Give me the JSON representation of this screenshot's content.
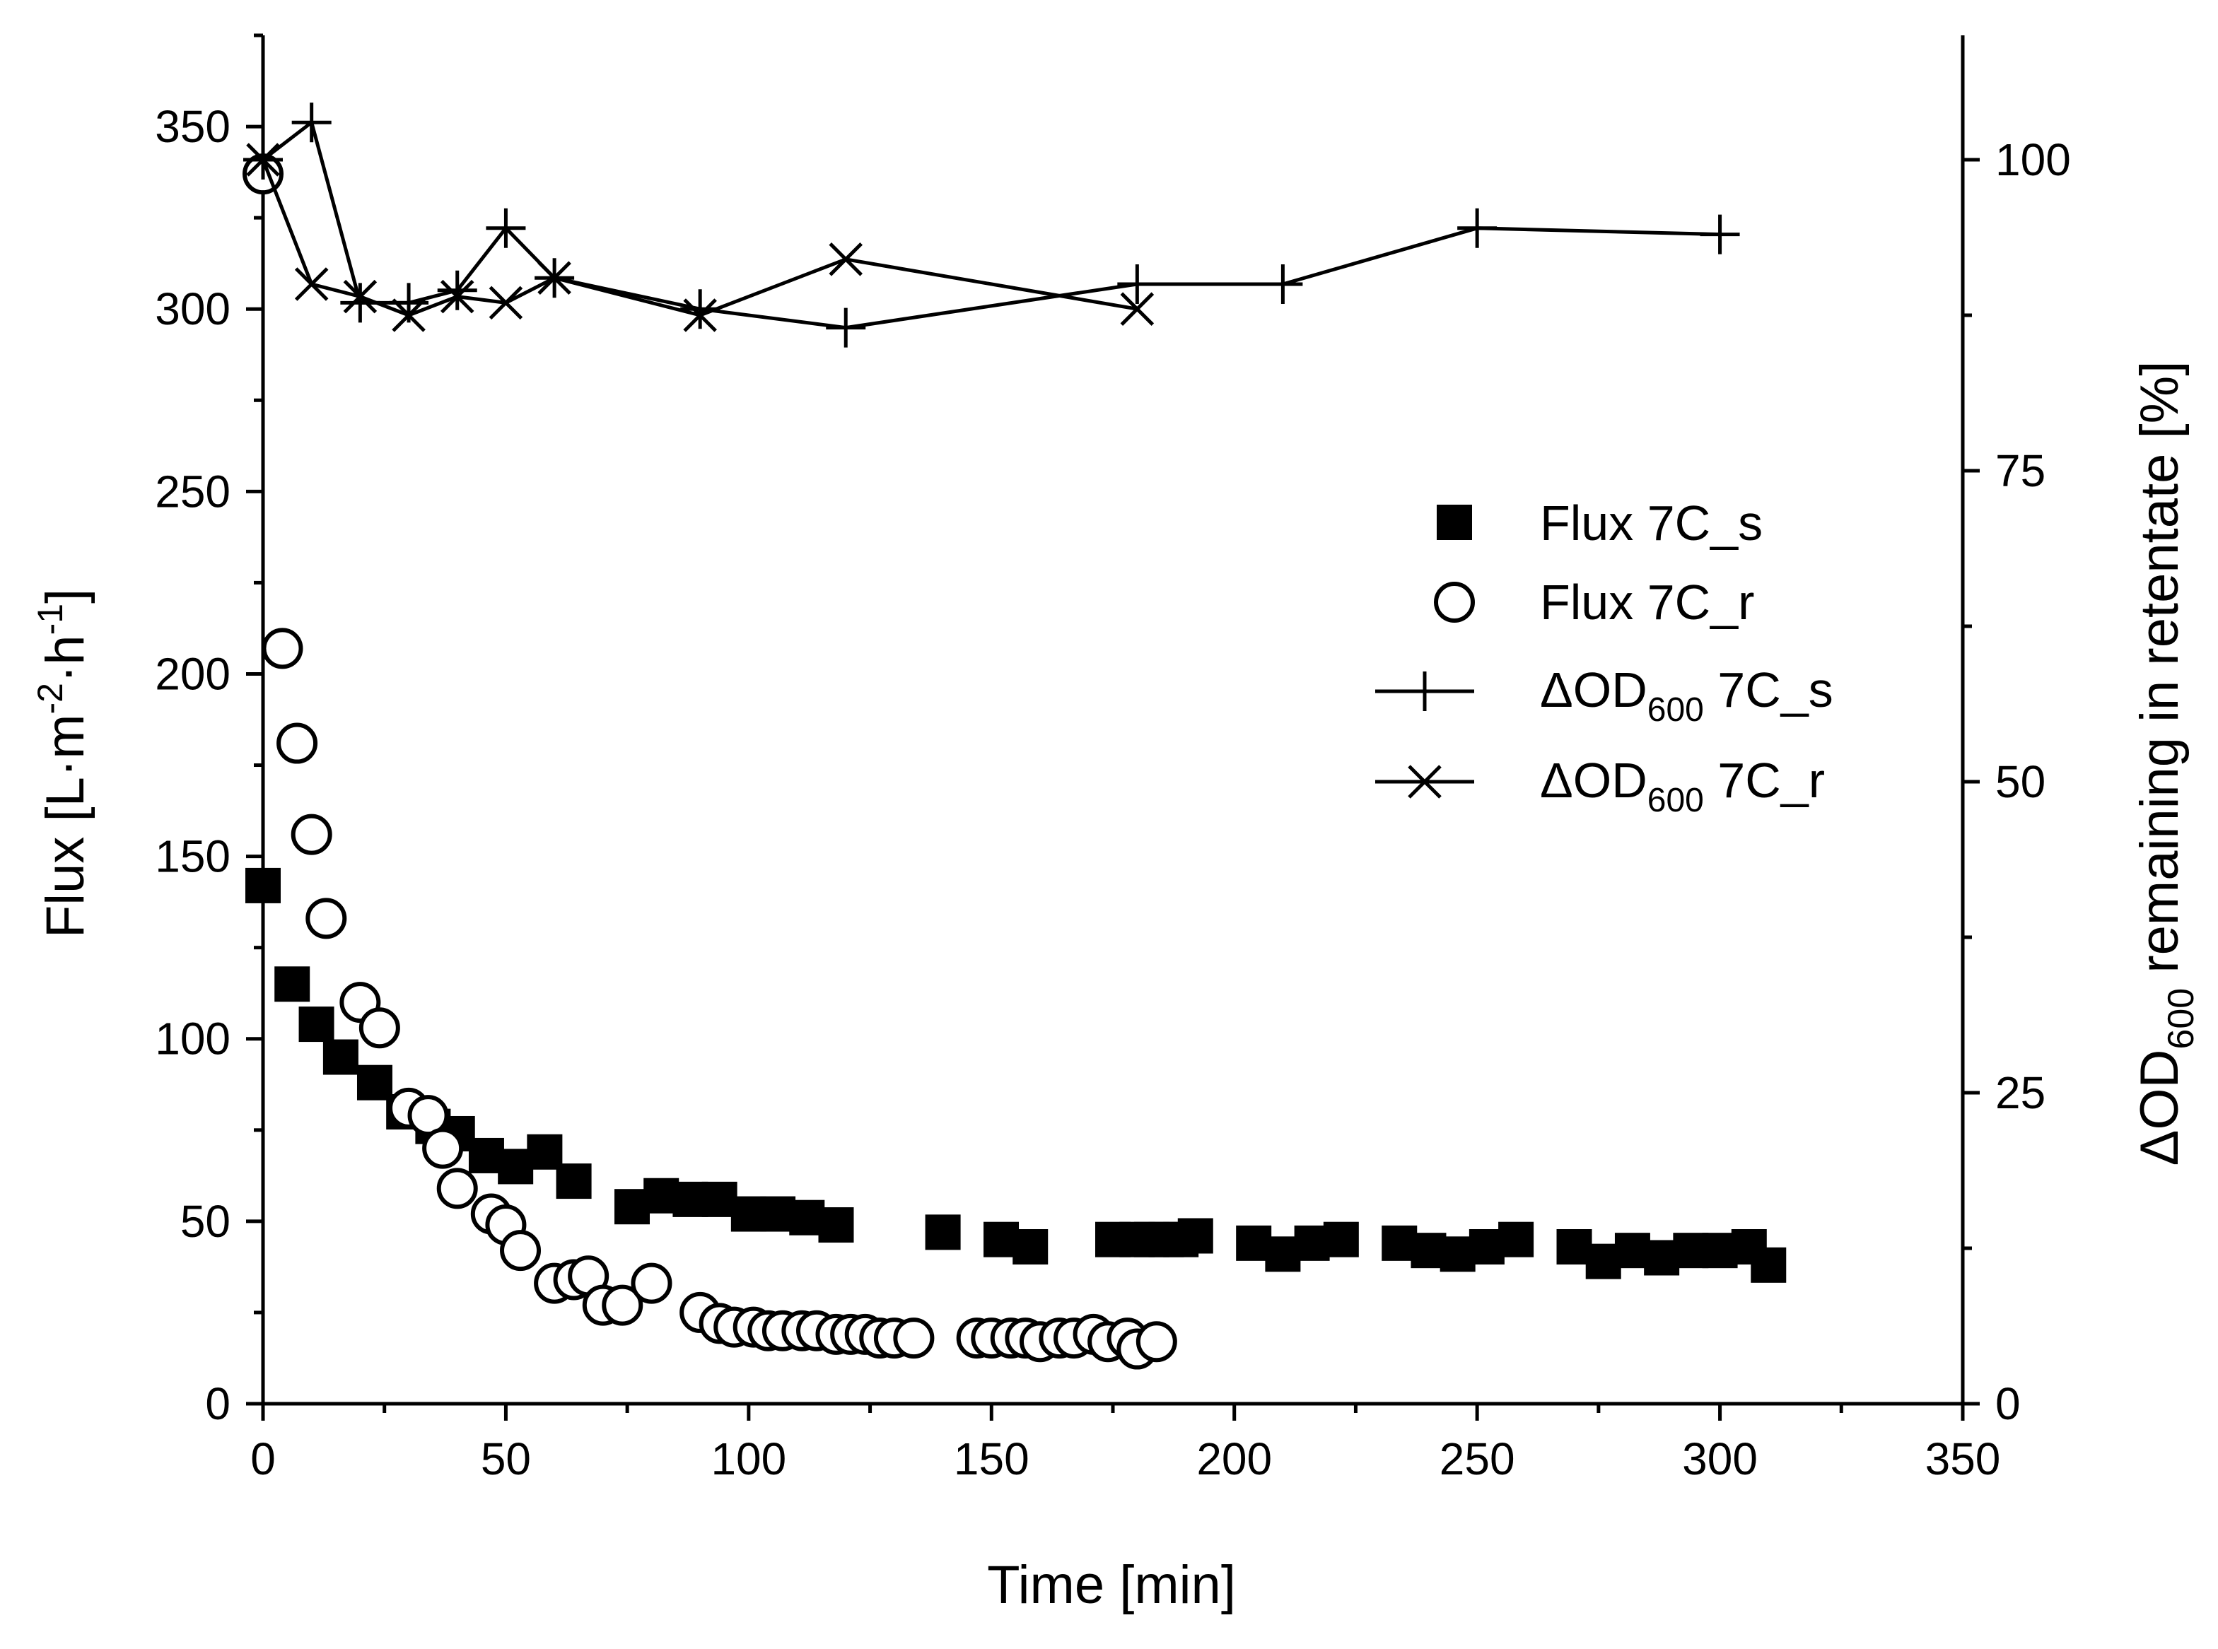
{
  "chart_data": {
    "type": "scatter",
    "xlabel": "Time [min]",
    "ylabel": {
      "main": "Flux [L·m",
      "sup1": "-2",
      "mid": "·h",
      "sup2": "-1",
      "end": "]"
    },
    "y2label": {
      "delta": "ΔOD",
      "sub": "600",
      "rest": " remaining in retentate [%]"
    },
    "xlim": [
      0,
      350
    ],
    "ylim": [
      0,
      375
    ],
    "y2lim": [
      0,
      110
    ],
    "xticks": [
      0,
      50,
      100,
      150,
      200,
      250,
      300,
      350
    ],
    "yticks": [
      0,
      50,
      100,
      150,
      200,
      250,
      300,
      350
    ],
    "y2ticks": [
      0,
      25,
      50,
      75,
      100
    ],
    "legend_position": "center-right",
    "legend": [
      {
        "key": "flux_s",
        "label": "Flux 7C_s"
      },
      {
        "key": "flux_r",
        "label": "Flux 7C_r"
      },
      {
        "key": "od_s",
        "pre": "ΔOD",
        "sub": "600",
        "post": " 7C_s"
      },
      {
        "key": "od_r",
        "pre": "ΔOD",
        "sub": "600",
        "post": " 7C_r"
      }
    ],
    "series": [
      {
        "name": "Flux 7C_s",
        "key": "flux_s",
        "axis": "left",
        "marker": "filled-square",
        "line": false,
        "x": [
          0,
          6,
          11,
          16,
          23,
          29,
          35,
          40,
          46,
          52,
          58,
          64,
          76,
          82,
          88,
          94,
          100,
          106,
          112,
          118,
          140,
          152,
          158,
          175,
          180,
          183,
          186,
          189,
          192,
          204,
          210,
          216,
          222,
          234,
          240,
          246,
          252,
          258,
          270,
          276,
          282,
          288,
          294,
          300,
          306,
          310
        ],
        "y": [
          142,
          115,
          104,
          95,
          88,
          80,
          76,
          74,
          68,
          65,
          69,
          61,
          54,
          57,
          56,
          56,
          52,
          52,
          51,
          49,
          47,
          45,
          43,
          45,
          45,
          45,
          45,
          45,
          46,
          44,
          41,
          44,
          45,
          44,
          42,
          41,
          43,
          45,
          43,
          39,
          42,
          40,
          42,
          42,
          43,
          38
        ]
      },
      {
        "name": "Flux 7C_r",
        "key": "flux_r",
        "axis": "left",
        "marker": "open-circle",
        "line": false,
        "x": [
          0,
          4,
          7,
          10,
          13,
          20,
          24,
          30,
          34,
          37,
          40,
          47,
          50,
          53,
          60,
          64,
          67,
          70,
          74,
          80,
          90,
          94,
          97,
          101,
          104,
          107,
          111,
          114,
          118,
          121,
          124,
          127,
          130,
          134,
          147,
          150,
          154,
          157,
          160,
          164,
          167,
          171,
          174,
          178,
          180,
          184
        ],
        "y": [
          337,
          207,
          181,
          156,
          133,
          110,
          103,
          81,
          79,
          70,
          59,
          52,
          49,
          42,
          33,
          34,
          35,
          27,
          27,
          33,
          25,
          22,
          21,
          21,
          20,
          20,
          20,
          20,
          19,
          19,
          19,
          18,
          18,
          18,
          18,
          18,
          18,
          18,
          17,
          18,
          18,
          19,
          17,
          18,
          15,
          17
        ]
      },
      {
        "name": "ΔOD600 7C_s",
        "key": "od_s",
        "axis": "right",
        "marker": "plus",
        "line": true,
        "x": [
          0,
          10,
          20,
          30,
          40,
          50,
          60,
          90,
          120,
          180,
          210,
          250,
          300
        ],
        "y": [
          100,
          103,
          88.5,
          88.5,
          89.5,
          94.5,
          90.5,
          88,
          86.5,
          90,
          90,
          94.5,
          94
        ]
      },
      {
        "name": "ΔOD600 7C_r",
        "key": "od_r",
        "axis": "right",
        "marker": "cross",
        "line": true,
        "x": [
          0,
          10,
          20,
          30,
          40,
          50,
          60,
          90,
          120,
          180
        ],
        "y": [
          100,
          90,
          89,
          87.5,
          89,
          88.5,
          90.5,
          87.5,
          92,
          88
        ]
      }
    ]
  }
}
